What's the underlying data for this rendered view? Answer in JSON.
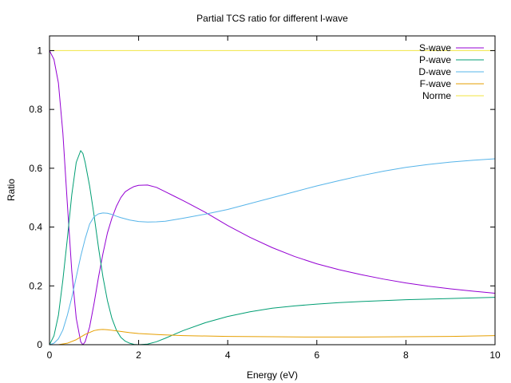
{
  "chart_data": {
    "type": "line",
    "title": "Partial TCS ratio for different l-wave",
    "xlabel": "Energy (eV)",
    "ylabel": "Ratio",
    "xlim": [
      0,
      10
    ],
    "ylim": [
      0,
      1.05
    ],
    "xticks": [
      0,
      2,
      4,
      6,
      8,
      10
    ],
    "yticks": [
      0,
      0.2,
      0.4,
      0.6,
      0.8,
      1
    ],
    "xtick_labels": [
      "0",
      "2",
      "4",
      "6",
      "8",
      "10"
    ],
    "ytick_labels": [
      "0",
      "0.2",
      "0.4",
      "0.6",
      "0.8",
      "1"
    ],
    "grid": false,
    "legend_position": "top-right",
    "series": [
      {
        "name": "S-wave",
        "color": "#9400d3",
        "points": [
          [
            0,
            1.0
          ],
          [
            0.1,
            0.97
          ],
          [
            0.2,
            0.89
          ],
          [
            0.3,
            0.72
          ],
          [
            0.4,
            0.48
          ],
          [
            0.5,
            0.25
          ],
          [
            0.6,
            0.09
          ],
          [
            0.7,
            0.01
          ],
          [
            0.75,
            0.0
          ],
          [
            0.8,
            0.01
          ],
          [
            0.9,
            0.06
          ],
          [
            1.0,
            0.14
          ],
          [
            1.1,
            0.23
          ],
          [
            1.2,
            0.31
          ],
          [
            1.3,
            0.38
          ],
          [
            1.4,
            0.43
          ],
          [
            1.5,
            0.47
          ],
          [
            1.6,
            0.5
          ],
          [
            1.7,
            0.52
          ],
          [
            1.8,
            0.53
          ],
          [
            1.9,
            0.538
          ],
          [
            2.0,
            0.542
          ],
          [
            2.2,
            0.543
          ],
          [
            2.4,
            0.535
          ],
          [
            2.6,
            0.52
          ],
          [
            2.8,
            0.505
          ],
          [
            3.0,
            0.49
          ],
          [
            3.5,
            0.45
          ],
          [
            4.0,
            0.405
          ],
          [
            4.5,
            0.365
          ],
          [
            5.0,
            0.33
          ],
          [
            5.5,
            0.3
          ],
          [
            6.0,
            0.275
          ],
          [
            6.5,
            0.255
          ],
          [
            7.0,
            0.238
          ],
          [
            7.5,
            0.223
          ],
          [
            8.0,
            0.21
          ],
          [
            8.5,
            0.199
          ],
          [
            9.0,
            0.19
          ],
          [
            9.5,
            0.182
          ],
          [
            10.0,
            0.175
          ]
        ]
      },
      {
        "name": "P-wave",
        "color": "#009e73",
        "points": [
          [
            0,
            0.0
          ],
          [
            0.1,
            0.03
          ],
          [
            0.2,
            0.1
          ],
          [
            0.3,
            0.22
          ],
          [
            0.4,
            0.36
          ],
          [
            0.5,
            0.51
          ],
          [
            0.6,
            0.62
          ],
          [
            0.7,
            0.66
          ],
          [
            0.75,
            0.65
          ],
          [
            0.8,
            0.62
          ],
          [
            0.9,
            0.54
          ],
          [
            1.0,
            0.44
          ],
          [
            1.1,
            0.33
          ],
          [
            1.2,
            0.23
          ],
          [
            1.3,
            0.15
          ],
          [
            1.4,
            0.09
          ],
          [
            1.5,
            0.05
          ],
          [
            1.6,
            0.025
          ],
          [
            1.7,
            0.012
          ],
          [
            1.8,
            0.005
          ],
          [
            1.9,
            0.001
          ],
          [
            2.0,
            0.0
          ],
          [
            2.2,
            0.002
          ],
          [
            2.4,
            0.01
          ],
          [
            2.6,
            0.022
          ],
          [
            2.8,
            0.035
          ],
          [
            3.0,
            0.048
          ],
          [
            3.5,
            0.075
          ],
          [
            4.0,
            0.096
          ],
          [
            4.5,
            0.112
          ],
          [
            5.0,
            0.124
          ],
          [
            5.5,
            0.132
          ],
          [
            6.0,
            0.138
          ],
          [
            6.5,
            0.143
          ],
          [
            7.0,
            0.147
          ],
          [
            7.5,
            0.15
          ],
          [
            8.0,
            0.153
          ],
          [
            8.5,
            0.155
          ],
          [
            9.0,
            0.157
          ],
          [
            9.5,
            0.159
          ],
          [
            10.0,
            0.161
          ]
        ]
      },
      {
        "name": "D-wave",
        "color": "#56b4e9",
        "points": [
          [
            0,
            0.0
          ],
          [
            0.1,
            0.005
          ],
          [
            0.2,
            0.02
          ],
          [
            0.3,
            0.05
          ],
          [
            0.4,
            0.1
          ],
          [
            0.5,
            0.16
          ],
          [
            0.6,
            0.23
          ],
          [
            0.7,
            0.3
          ],
          [
            0.8,
            0.36
          ],
          [
            0.9,
            0.41
          ],
          [
            1.0,
            0.435
          ],
          [
            1.1,
            0.445
          ],
          [
            1.2,
            0.448
          ],
          [
            1.3,
            0.447
          ],
          [
            1.4,
            0.443
          ],
          [
            1.5,
            0.437
          ],
          [
            1.6,
            0.432
          ],
          [
            1.8,
            0.424
          ],
          [
            2.0,
            0.419
          ],
          [
            2.2,
            0.417
          ],
          [
            2.4,
            0.418
          ],
          [
            2.6,
            0.42
          ],
          [
            2.8,
            0.425
          ],
          [
            3.0,
            0.43
          ],
          [
            3.5,
            0.444
          ],
          [
            4.0,
            0.46
          ],
          [
            4.5,
            0.48
          ],
          [
            5.0,
            0.5
          ],
          [
            5.5,
            0.52
          ],
          [
            6.0,
            0.54
          ],
          [
            6.5,
            0.558
          ],
          [
            7.0,
            0.575
          ],
          [
            7.5,
            0.59
          ],
          [
            8.0,
            0.603
          ],
          [
            8.5,
            0.613
          ],
          [
            9.0,
            0.621
          ],
          [
            9.5,
            0.627
          ],
          [
            10.0,
            0.632
          ]
        ]
      },
      {
        "name": "F-wave",
        "color": "#e69f00",
        "points": [
          [
            0,
            0.0
          ],
          [
            0.2,
            0.0
          ],
          [
            0.4,
            0.005
          ],
          [
            0.6,
            0.017
          ],
          [
            0.8,
            0.035
          ],
          [
            1.0,
            0.048
          ],
          [
            1.1,
            0.051
          ],
          [
            1.2,
            0.052
          ],
          [
            1.3,
            0.051
          ],
          [
            1.4,
            0.049
          ],
          [
            1.6,
            0.045
          ],
          [
            1.8,
            0.041
          ],
          [
            2.0,
            0.038
          ],
          [
            2.5,
            0.034
          ],
          [
            3.0,
            0.031
          ],
          [
            4.0,
            0.028
          ],
          [
            5.0,
            0.027
          ],
          [
            6.0,
            0.026
          ],
          [
            7.0,
            0.026
          ],
          [
            8.0,
            0.027
          ],
          [
            9.0,
            0.028
          ],
          [
            10.0,
            0.031
          ]
        ]
      },
      {
        "name": "Norme",
        "color": "#f0e442",
        "points": [
          [
            0,
            1.0
          ],
          [
            10,
            1.0
          ]
        ]
      }
    ]
  }
}
